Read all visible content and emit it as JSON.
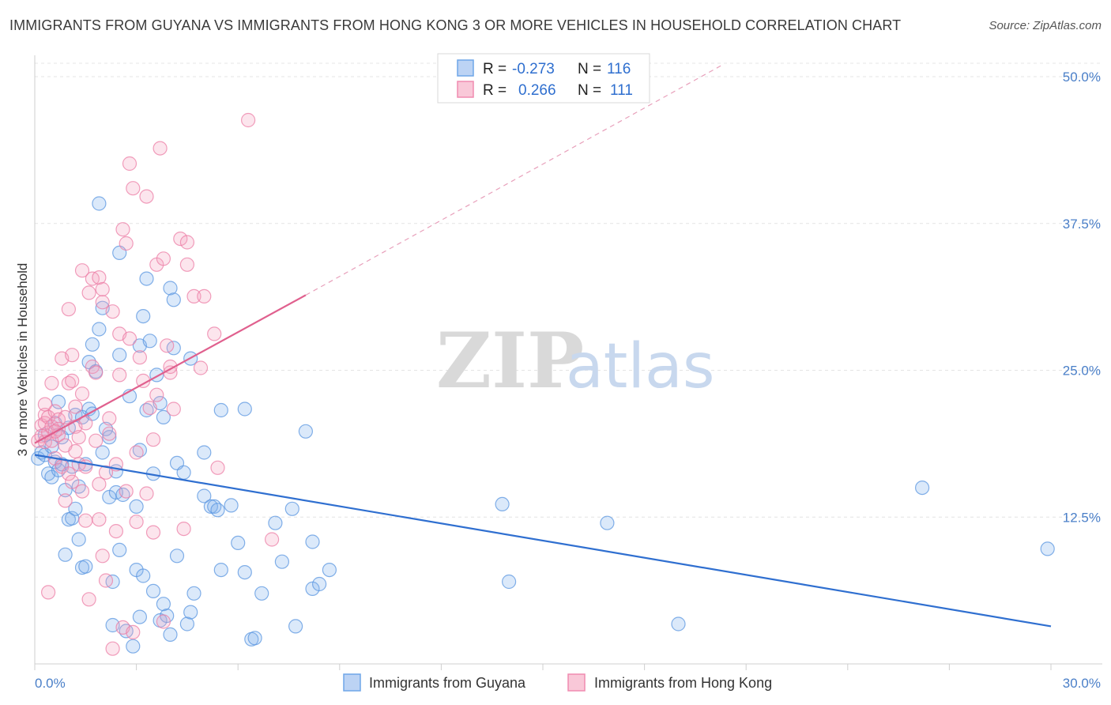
{
  "title": "IMMIGRANTS FROM GUYANA VS IMMIGRANTS FROM HONG KONG 3 OR MORE VEHICLES IN HOUSEHOLD CORRELATION CHART",
  "source": "Source: ZipAtlas.com",
  "watermark": {
    "zip": "ZIP",
    "atlas": "atlas"
  },
  "legend": {
    "r_label": "R =",
    "n_label": "N =",
    "series": [
      {
        "r": "-0.273",
        "n": "116",
        "color": "#6fa6e8"
      },
      {
        "r": "0.266",
        "n": "111",
        "color": "#f08bb0"
      }
    ]
  },
  "chart_data": {
    "type": "scatter",
    "title": "IMMIGRANTS FROM GUYANA VS IMMIGRANTS FROM HONG KONG 3 OR MORE VEHICLES IN HOUSEHOLD CORRELATION CHART",
    "xlabel": "",
    "ylabel": "3 or more Vehicles in Household",
    "xlim": [
      0,
      30
    ],
    "ylim": [
      0,
      52
    ],
    "x_tick_labels": [
      "0.0%",
      "30.0%"
    ],
    "y_ticks": [
      12.5,
      25.0,
      37.5,
      50.0
    ],
    "y_tick_labels": [
      "12.5%",
      "25.0%",
      "37.5%",
      "50.0%"
    ],
    "grid": true,
    "legend_position": "top-center",
    "series": [
      {
        "name": "Immigrants from Guyana",
        "color": "#6fa6e8",
        "r": -0.273,
        "n": 116,
        "trend": {
          "x0": 0,
          "y0": 17.8,
          "x1": 30,
          "y1": 3.2
        },
        "points": [
          [
            0.1,
            17.5
          ],
          [
            0.2,
            18.0
          ],
          [
            0.3,
            17.8
          ],
          [
            0.3,
            19.5
          ],
          [
            0.4,
            16.2
          ],
          [
            0.5,
            18.5
          ],
          [
            0.5,
            15.9
          ],
          [
            0.6,
            17.2
          ],
          [
            0.6,
            20.5
          ],
          [
            0.7,
            16.5
          ],
          [
            0.7,
            22.3
          ],
          [
            0.8,
            19.3
          ],
          [
            0.8,
            17.0
          ],
          [
            0.9,
            14.8
          ],
          [
            0.9,
            9.3
          ],
          [
            1.0,
            12.3
          ],
          [
            1.0,
            20.1
          ],
          [
            1.1,
            16.8
          ],
          [
            1.1,
            12.4
          ],
          [
            1.2,
            21.2
          ],
          [
            1.2,
            13.2
          ],
          [
            1.3,
            15.1
          ],
          [
            1.3,
            10.6
          ],
          [
            1.4,
            8.2
          ],
          [
            1.4,
            21.0
          ],
          [
            1.5,
            8.3
          ],
          [
            1.5,
            17.0
          ],
          [
            1.6,
            21.7
          ],
          [
            1.6,
            25.7
          ],
          [
            1.7,
            21.3
          ],
          [
            1.7,
            27.2
          ],
          [
            1.8,
            24.9
          ],
          [
            1.9,
            39.2
          ],
          [
            1.9,
            28.5
          ],
          [
            2.0,
            30.3
          ],
          [
            2.0,
            18.0
          ],
          [
            2.1,
            20.0
          ],
          [
            2.2,
            14.2
          ],
          [
            2.2,
            19.3
          ],
          [
            2.3,
            7.0
          ],
          [
            2.3,
            3.3
          ],
          [
            2.4,
            14.6
          ],
          [
            2.4,
            16.4
          ],
          [
            2.5,
            35.0
          ],
          [
            2.5,
            26.3
          ],
          [
            2.5,
            9.7
          ],
          [
            2.6,
            14.4
          ],
          [
            2.7,
            2.8
          ],
          [
            2.8,
            22.8
          ],
          [
            2.9,
            1.5
          ],
          [
            3.0,
            13.4
          ],
          [
            3.0,
            8.0
          ],
          [
            3.1,
            27.1
          ],
          [
            3.1,
            18.2
          ],
          [
            3.1,
            4.0
          ],
          [
            3.2,
            29.6
          ],
          [
            3.2,
            7.5
          ],
          [
            3.3,
            32.8
          ],
          [
            3.3,
            21.6
          ],
          [
            3.4,
            27.5
          ],
          [
            3.5,
            16.2
          ],
          [
            3.5,
            6.2
          ],
          [
            3.6,
            24.6
          ],
          [
            3.7,
            3.7
          ],
          [
            3.7,
            22.2
          ],
          [
            3.8,
            21.0
          ],
          [
            3.8,
            5.1
          ],
          [
            3.9,
            4.1
          ],
          [
            4.0,
            32.0
          ],
          [
            4.0,
            2.5
          ],
          [
            4.1,
            31.0
          ],
          [
            4.1,
            26.9
          ],
          [
            4.2,
            17.1
          ],
          [
            4.2,
            9.2
          ],
          [
            4.4,
            16.3
          ],
          [
            4.5,
            3.4
          ],
          [
            4.6,
            26.0
          ],
          [
            4.6,
            4.4
          ],
          [
            4.7,
            6.0
          ],
          [
            5.0,
            18.0
          ],
          [
            5.0,
            14.3
          ],
          [
            5.2,
            13.4
          ],
          [
            5.3,
            13.4
          ],
          [
            5.4,
            13.1
          ],
          [
            5.5,
            8.0
          ],
          [
            5.5,
            21.6
          ],
          [
            5.8,
            13.5
          ],
          [
            6.0,
            10.3
          ],
          [
            6.2,
            7.8
          ],
          [
            6.2,
            21.7
          ],
          [
            6.4,
            2.1
          ],
          [
            6.5,
            2.2
          ],
          [
            6.7,
            6.0
          ],
          [
            7.1,
            12.0
          ],
          [
            7.3,
            8.7
          ],
          [
            7.6,
            13.2
          ],
          [
            7.7,
            3.2
          ],
          [
            8.0,
            19.8
          ],
          [
            8.2,
            10.4
          ],
          [
            8.2,
            6.4
          ],
          [
            8.4,
            6.8
          ],
          [
            8.7,
            8.0
          ],
          [
            13.8,
            13.6
          ],
          [
            14.0,
            7.0
          ],
          [
            16.9,
            12.0
          ],
          [
            19.0,
            3.4
          ],
          [
            26.2,
            15.0
          ],
          [
            29.9,
            9.8
          ]
        ]
      },
      {
        "name": "Immigrants from Hong Kong",
        "color": "#f08bb0",
        "r": 0.266,
        "n": 111,
        "trend": {
          "x0": 0,
          "y0": 18.8,
          "x1": 8.0,
          "y1": 31.4
        },
        "trend_extension": {
          "x0": 8.0,
          "y0": 31.4,
          "x1": 20.3,
          "y1": 51.0
        },
        "points": [
          [
            0.1,
            19.0
          ],
          [
            0.2,
            20.3
          ],
          [
            0.2,
            19.4
          ],
          [
            0.3,
            21.2
          ],
          [
            0.3,
            20.5
          ],
          [
            0.3,
            18.9
          ],
          [
            0.4,
            21.0
          ],
          [
            0.4,
            19.7
          ],
          [
            0.4,
            6.1
          ],
          [
            0.5,
            23.9
          ],
          [
            0.5,
            20.2
          ],
          [
            0.5,
            19.0
          ],
          [
            0.6,
            21.5
          ],
          [
            0.6,
            17.5
          ],
          [
            0.7,
            20.8
          ],
          [
            0.7,
            20.0
          ],
          [
            0.7,
            19.5
          ],
          [
            0.8,
            16.8
          ],
          [
            0.8,
            26.0
          ],
          [
            0.9,
            18.6
          ],
          [
            0.9,
            21.0
          ],
          [
            1.0,
            30.2
          ],
          [
            1.0,
            23.9
          ],
          [
            1.0,
            16.2
          ],
          [
            1.1,
            24.1
          ],
          [
            1.1,
            26.3
          ],
          [
            1.1,
            15.5
          ],
          [
            1.2,
            20.2
          ],
          [
            1.2,
            18.1
          ],
          [
            1.3,
            19.3
          ],
          [
            1.3,
            17.0
          ],
          [
            1.4,
            23.0
          ],
          [
            1.4,
            14.7
          ],
          [
            1.4,
            33.5
          ],
          [
            1.5,
            20.5
          ],
          [
            1.5,
            16.8
          ],
          [
            1.5,
            12.2
          ],
          [
            1.6,
            31.6
          ],
          [
            1.6,
            5.5
          ],
          [
            1.7,
            32.8
          ],
          [
            1.7,
            25.3
          ],
          [
            1.8,
            24.8
          ],
          [
            1.8,
            19.0
          ],
          [
            1.9,
            15.3
          ],
          [
            1.9,
            32.9
          ],
          [
            1.9,
            12.3
          ],
          [
            2.0,
            31.9
          ],
          [
            2.0,
            30.8
          ],
          [
            2.1,
            7.1
          ],
          [
            2.1,
            16.3
          ],
          [
            2.2,
            20.9
          ],
          [
            2.2,
            19.6
          ],
          [
            2.3,
            30.0
          ],
          [
            2.4,
            17.0
          ],
          [
            2.4,
            11.3
          ],
          [
            2.5,
            24.6
          ],
          [
            2.5,
            28.1
          ],
          [
            2.6,
            3.1
          ],
          [
            2.6,
            37.0
          ],
          [
            2.7,
            35.8
          ],
          [
            2.7,
            14.7
          ],
          [
            2.8,
            42.6
          ],
          [
            2.8,
            27.7
          ],
          [
            2.9,
            40.5
          ],
          [
            2.9,
            2.7
          ],
          [
            3.0,
            18.0
          ],
          [
            3.0,
            12.1
          ],
          [
            3.1,
            26.1
          ],
          [
            3.2,
            24.1
          ],
          [
            3.3,
            39.8
          ],
          [
            3.3,
            14.5
          ],
          [
            3.4,
            21.8
          ],
          [
            3.5,
            11.2
          ],
          [
            3.5,
            19.1
          ],
          [
            3.6,
            22.9
          ],
          [
            3.6,
            34.0
          ],
          [
            3.7,
            43.9
          ],
          [
            3.8,
            34.5
          ],
          [
            3.9,
            27.1
          ],
          [
            4.0,
            24.8
          ],
          [
            4.0,
            25.3
          ],
          [
            4.1,
            21.7
          ],
          [
            4.3,
            36.2
          ],
          [
            4.4,
            11.5
          ],
          [
            4.5,
            35.9
          ],
          [
            4.5,
            34.0
          ],
          [
            4.7,
            31.3
          ],
          [
            4.9,
            25.2
          ],
          [
            5.0,
            31.3
          ],
          [
            5.3,
            28.1
          ],
          [
            5.4,
            16.7
          ],
          [
            6.3,
            46.3
          ],
          [
            7.0,
            10.6
          ],
          [
            0.3,
            22.1
          ],
          [
            0.6,
            19.8
          ],
          [
            1.2,
            21.9
          ],
          [
            2.0,
            9.2
          ],
          [
            2.3,
            1.3
          ],
          [
            3.8,
            3.6
          ],
          [
            0.9,
            13.9
          ]
        ]
      }
    ]
  }
}
